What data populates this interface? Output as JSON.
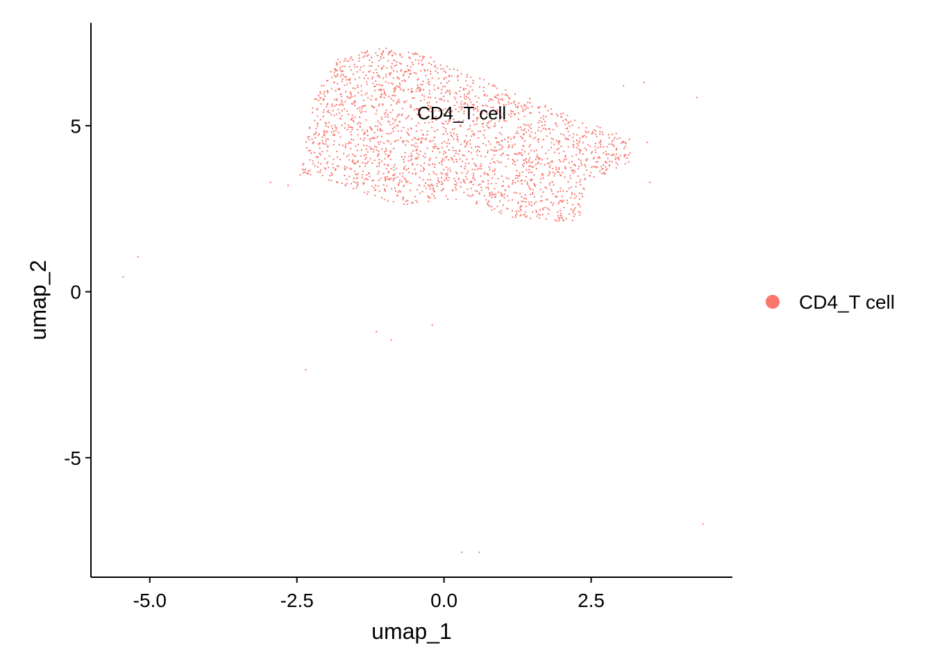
{
  "chart_data": {
    "type": "scatter",
    "title": "",
    "xlabel": "umap_1",
    "ylabel": "umap_2",
    "xlim": [
      -6.0,
      4.9
    ],
    "ylim": [
      -8.6,
      8.1
    ],
    "x_ticks": [
      -5.0,
      -2.5,
      0.0,
      2.5
    ],
    "x_tick_labels": [
      "-5.0",
      "-2.5",
      "0.0",
      "2.5"
    ],
    "y_ticks": [
      -5,
      0,
      5
    ],
    "y_tick_labels": [
      "-5",
      "0",
      "5"
    ],
    "grid": false,
    "legend_position": "right",
    "series": [
      {
        "name": "CD4_T cell",
        "color": "#F8766D",
        "n_points_approx": 2200,
        "cluster_region": {
          "x_range": [
            -2.5,
            3.2
          ],
          "y_range": [
            2.0,
            7.4
          ],
          "centroid": [
            0.3,
            5.3
          ]
        },
        "outliers": [
          [
            -5.2,
            1.05
          ],
          [
            -5.45,
            0.45
          ],
          [
            -2.35,
            -2.35
          ],
          [
            -1.15,
            -1.2
          ],
          [
            -0.9,
            -1.45
          ],
          [
            -0.2,
            -1.0
          ],
          [
            0.3,
            -7.85
          ],
          [
            0.6,
            -7.85
          ],
          [
            4.4,
            -7.0
          ],
          [
            3.05,
            6.2
          ],
          [
            3.4,
            6.3
          ],
          [
            4.3,
            5.85
          ],
          [
            -2.95,
            3.3
          ],
          [
            -2.65,
            3.2
          ],
          [
            3.45,
            4.5
          ],
          [
            3.5,
            3.3
          ]
        ]
      }
    ],
    "annotations": [
      {
        "text": "CD4_T cell",
        "x": 0.3,
        "y": 5.3
      }
    ]
  },
  "legend": {
    "items": [
      {
        "label": "CD4_T cell",
        "color": "#F8766D"
      }
    ]
  }
}
